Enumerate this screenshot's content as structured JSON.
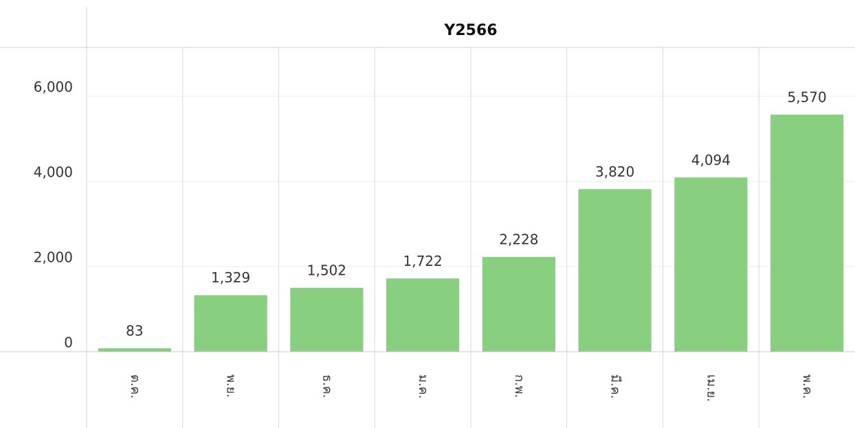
{
  "chart_data": {
    "type": "bar",
    "title": "Y2566",
    "categories": [
      "ต.ค.",
      "พ.ย.",
      "ธ.ค.",
      "ม.ค.",
      "ก.พ.",
      "มี.ค.",
      "เม.ย.",
      "พ.ค."
    ],
    "values": [
      83,
      1329,
      1502,
      1722,
      2228,
      3820,
      4094,
      5570
    ],
    "value_labels": [
      "83",
      "1,329",
      "1,502",
      "1,722",
      "2,228",
      "3,820",
      "4,094",
      "5,570"
    ],
    "color": "#88cf7f",
    "ylim": [
      0,
      7100
    ],
    "yticks": [
      0,
      {
        "value": 2000,
        "label": "2,000"
      },
      {
        "value": 4000,
        "label": "4,000"
      },
      {
        "value": 6000,
        "label": "6,000"
      }
    ],
    "grid": true
  }
}
